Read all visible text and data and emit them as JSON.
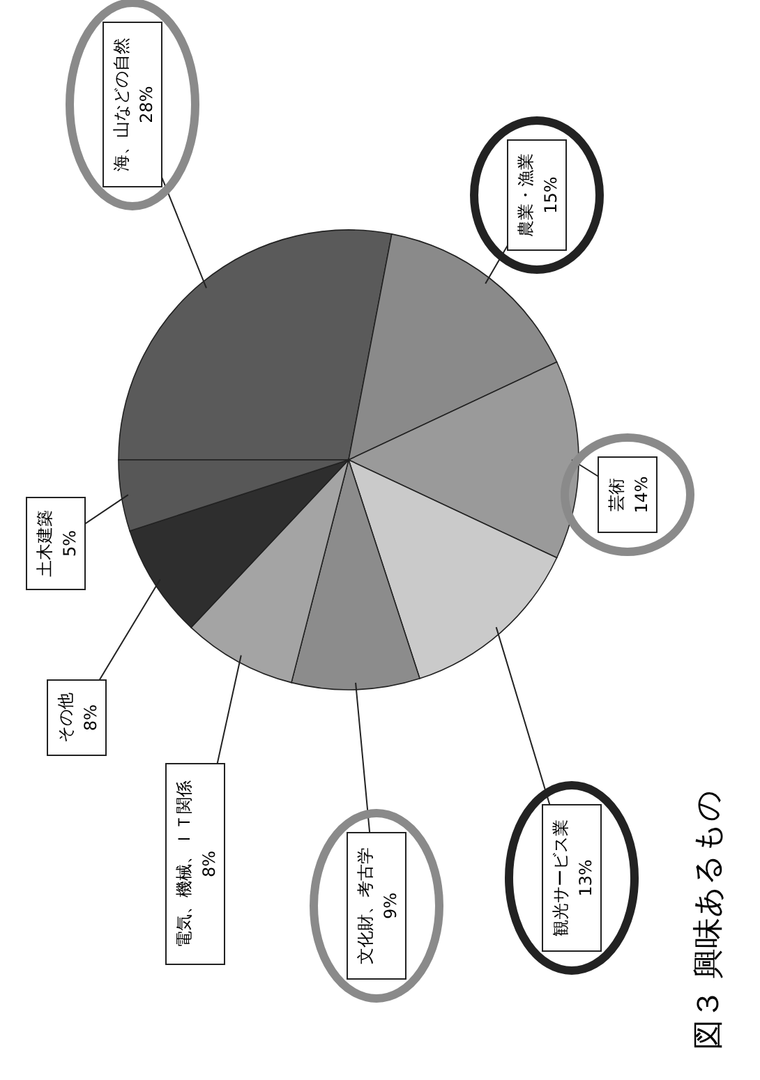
{
  "chart_data": {
    "type": "pie",
    "title": "図３ 興味あるもの",
    "categories": [
      "海、山などの自然",
      "農業・漁業",
      "芸術",
      "観光サービス業",
      "文化財、考古学",
      "電気、機械、ＩＴ関係",
      "その他",
      "土木建築"
    ],
    "values": [
      28,
      15,
      14,
      13,
      9,
      8,
      8,
      5
    ],
    "value_labels": [
      "28%",
      "15%",
      "14%",
      "13%",
      "9%",
      "8%",
      "8%",
      "5%"
    ],
    "colors": [
      "#5a5a5a",
      "#8a8a8a",
      "#9a9a9a",
      "#cacaca",
      "#8c8c8c",
      "#a4a4a4",
      "#2e2e2e",
      "#575757"
    ]
  }
}
